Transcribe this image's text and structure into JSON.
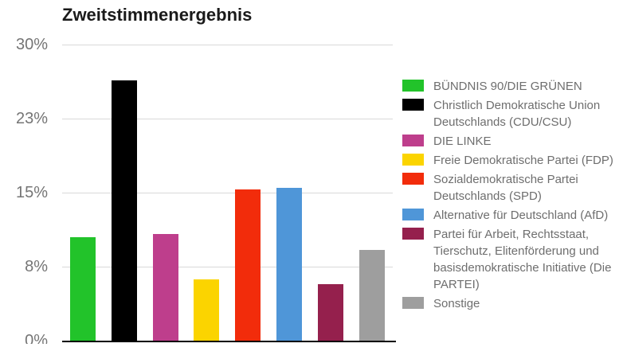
{
  "chart_data": {
    "type": "bar",
    "title": "Zweitstimmenergebnis",
    "categories": [
      "BÜNDNIS 90/DIE GRÜNEN",
      "Christlich Demokratische Union Deutschlands (CDU/CSU)",
      "DIE LINKE",
      "Freie Demokratische Partei (FDP)",
      "Sozialdemokratische Partei Deutschlands (SPD)",
      "Alternative für Deutschland (AfD)",
      "Partei für Arbeit, Rechtsstaat, Tierschutz, Elitenförderung und basisdemokratische Initiative (Die PARTEI)",
      "Sonstige"
    ],
    "party_keys": [
      "gruene",
      "cdu-csu",
      "linke",
      "fdp",
      "spd",
      "afd",
      "die-partei",
      "sonstige"
    ],
    "values": [
      10.5,
      26.4,
      10.8,
      6.2,
      15.3,
      15.5,
      5.7,
      9.2
    ],
    "unit": "%",
    "bar_colors": [
      "#22C32A",
      "#000000",
      "#BE3E8C",
      "#FBD400",
      "#F22C0B",
      "#4F96D8",
      "#95204D",
      "#9E9E9E"
    ],
    "xlabel": "",
    "ylabel": "",
    "ylim": [
      0,
      30
    ],
    "yticks": [
      {
        "value": 0,
        "label": "0%"
      },
      {
        "value": 7.5,
        "label": "8%"
      },
      {
        "value": 15,
        "label": "15%"
      },
      {
        "value": 22.5,
        "label": "23%"
      },
      {
        "value": 30,
        "label": "30%"
      }
    ],
    "grid": true,
    "legend_position": "right"
  },
  "legend": {
    "items": [
      {
        "label": "BÜNDNIS 90/DIE GRÜNEN",
        "color": "#22C32A"
      },
      {
        "label": "Christlich Demokratische Union Deutschlands (CDU/CSU)",
        "color": "#000000"
      },
      {
        "label": "DIE LINKE",
        "color": "#BE3E8C"
      },
      {
        "label": "Freie Demokratische Partei (FDP)",
        "color": "#FBD400"
      },
      {
        "label": "Sozialdemokratische Partei Deutschlands (SPD)",
        "color": "#F22C0B"
      },
      {
        "label": "Alternative für Deutschland (AfD)",
        "color": "#4F96D8"
      },
      {
        "label": "Partei für Arbeit, Rechtsstaat, Tierschutz, Elitenförderung und basisdemokratische Initiative (Die PARTEI)",
        "color": "#95204D"
      },
      {
        "label": "Sonstige",
        "color": "#9E9E9E"
      }
    ]
  },
  "colors": {
    "grid": "#d8d8d8",
    "axis_line": "#000000",
    "tick_label": "#757575",
    "legend_text": "#6e6e6e",
    "title_text": "#1a1a1a",
    "background": "#ffffff"
  }
}
